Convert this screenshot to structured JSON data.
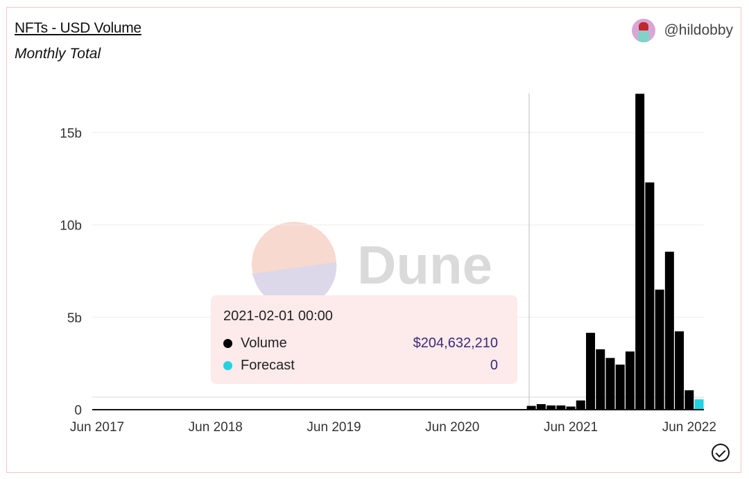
{
  "header": {
    "title": "NFTs - USD Volume",
    "subtitle": "Monthly Total",
    "author": "@hildobby"
  },
  "watermark": "Dune",
  "tooltip": {
    "date": "2021-02-01 00:00",
    "rows": [
      {
        "label": "Volume",
        "value": "$204,632,210",
        "color": "#000000"
      },
      {
        "label": "Forecast",
        "value": "0",
        "color": "#22d3e0"
      }
    ]
  },
  "chart_data": {
    "type": "bar",
    "title": "NFTs - USD Volume",
    "subtitle": "Monthly Total",
    "stacked": true,
    "categories": [
      "2021-02",
      "2021-03",
      "2021-04",
      "2021-05",
      "2021-06",
      "2021-07",
      "2021-08",
      "2021-09",
      "2021-10",
      "2021-11",
      "2021-12",
      "2022-01",
      "2022-02",
      "2022-03",
      "2022-04",
      "2022-05",
      "2022-06",
      "2022-07"
    ],
    "series": [
      {
        "name": "Volume",
        "color": "#000000",
        "values": [
          0.205,
          0.3,
          0.23,
          0.23,
          0.17,
          0.5,
          4.16,
          3.27,
          2.8,
          2.44,
          3.15,
          17.1,
          12.3,
          6.5,
          8.55,
          4.24,
          1.05,
          0
        ]
      },
      {
        "name": "Forecast",
        "color": "#22d3e0",
        "values": [
          0,
          0,
          0,
          0,
          0,
          0,
          0,
          0,
          0,
          0,
          0,
          0,
          0,
          0,
          0,
          0,
          0,
          0.56
        ]
      }
    ],
    "y_unit": "billion USD",
    "ylim": [
      0,
      17.1
    ],
    "yticks": [
      "0",
      "5b",
      "10b",
      "15b"
    ],
    "ytick_values": [
      0,
      5,
      10,
      15
    ],
    "xticks": [
      "Jun 2017",
      "Jun 2018",
      "Jun 2019",
      "Jun 2020",
      "Jun 2021",
      "Jun 2022"
    ],
    "xtick_dates": [
      "2017-06",
      "2018-06",
      "2019-06",
      "2020-06",
      "2021-06",
      "2022-06"
    ],
    "grid": true,
    "hover_category": "2021-02"
  }
}
